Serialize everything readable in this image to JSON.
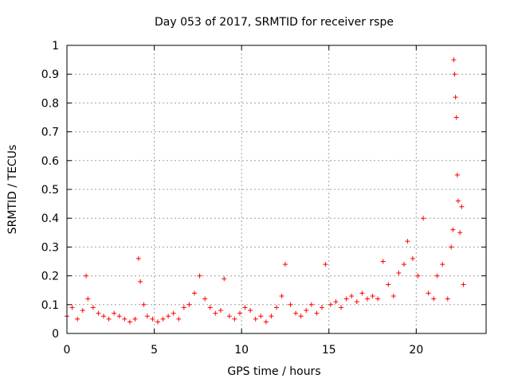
{
  "chart_data": {
    "type": "scatter",
    "title": "Day 053 of 2017, SRMTID for receiver rspe",
    "xlabel": "GPS time / hours",
    "ylabel": "SRMTID / TECUs",
    "xlim": [
      0,
      24
    ],
    "ylim": [
      0,
      1
    ],
    "grid": true,
    "marker": "+",
    "marker_color": "#ff0000",
    "x_ticks": [
      {
        "value": 0,
        "label": "0"
      },
      {
        "value": 5,
        "label": "5"
      },
      {
        "value": 10,
        "label": "10"
      },
      {
        "value": 15,
        "label": "15"
      },
      {
        "value": 20,
        "label": "20"
      }
    ],
    "y_ticks": [
      {
        "value": 0,
        "label": "0"
      },
      {
        "value": 0.1,
        "label": "0.1"
      },
      {
        "value": 0.2,
        "label": "0.2"
      },
      {
        "value": 0.3,
        "label": "0.3"
      },
      {
        "value": 0.4,
        "label": "0.4"
      },
      {
        "value": 0.5,
        "label": "0.5"
      },
      {
        "value": 0.6,
        "label": "0.6"
      },
      {
        "value": 0.7,
        "label": "0.7"
      },
      {
        "value": 0.8,
        "label": "0.8"
      },
      {
        "value": 0.9,
        "label": "0.9"
      },
      {
        "value": 1,
        "label": "1"
      }
    ],
    "series": [
      {
        "name": "SRMTID",
        "x": [
          0.0,
          0.3,
          0.6,
          0.9,
          1.1,
          1.2,
          1.5,
          1.8,
          2.1,
          2.4,
          2.7,
          3.0,
          3.3,
          3.6,
          3.9,
          4.1,
          4.2,
          4.4,
          4.6,
          4.9,
          5.2,
          5.5,
          5.8,
          6.1,
          6.4,
          6.7,
          7.0,
          7.3,
          7.6,
          7.9,
          8.2,
          8.5,
          8.8,
          9.0,
          9.3,
          9.6,
          9.9,
          10.2,
          10.5,
          10.8,
          11.1,
          11.4,
          11.7,
          12.0,
          12.3,
          12.5,
          12.8,
          13.1,
          13.4,
          13.7,
          14.0,
          14.3,
          14.6,
          14.8,
          15.1,
          15.4,
          15.7,
          16.0,
          16.3,
          16.6,
          16.9,
          17.2,
          17.5,
          17.8,
          18.1,
          18.4,
          18.7,
          19.0,
          19.3,
          19.5,
          19.8,
          20.1,
          20.4,
          20.7,
          21.0,
          21.2,
          21.5,
          21.8,
          22.0,
          22.1,
          22.15,
          22.2,
          22.25,
          22.3,
          22.35,
          22.4,
          22.5,
          22.6,
          22.7
        ],
        "y": [
          0.06,
          0.09,
          0.05,
          0.08,
          0.2,
          0.12,
          0.09,
          0.07,
          0.06,
          0.05,
          0.07,
          0.06,
          0.05,
          0.04,
          0.05,
          0.26,
          0.18,
          0.1,
          0.06,
          0.05,
          0.04,
          0.05,
          0.06,
          0.07,
          0.05,
          0.09,
          0.1,
          0.14,
          0.2,
          0.12,
          0.09,
          0.07,
          0.08,
          0.19,
          0.06,
          0.05,
          0.07,
          0.09,
          0.08,
          0.05,
          0.06,
          0.04,
          0.06,
          0.09,
          0.13,
          0.24,
          0.1,
          0.07,
          0.06,
          0.08,
          0.1,
          0.07,
          0.09,
          0.24,
          0.1,
          0.11,
          0.09,
          0.12,
          0.13,
          0.11,
          0.14,
          0.12,
          0.13,
          0.12,
          0.25,
          0.17,
          0.13,
          0.21,
          0.24,
          0.32,
          0.26,
          0.2,
          0.4,
          0.14,
          0.12,
          0.2,
          0.24,
          0.12,
          0.3,
          0.36,
          0.95,
          0.9,
          0.82,
          0.75,
          0.55,
          0.46,
          0.35,
          0.44,
          0.17
        ]
      }
    ]
  }
}
